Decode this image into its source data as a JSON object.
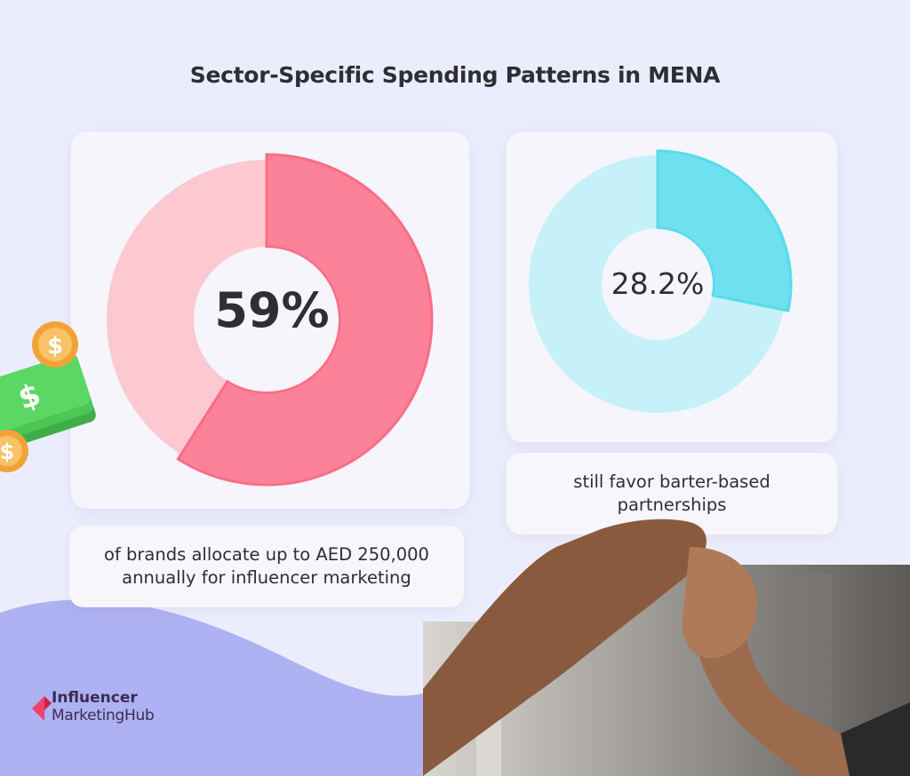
{
  "title": "Sector-Specific Spending Patterns in MENA",
  "chart_data": [
    {
      "type": "pie",
      "style": "donut",
      "values": [
        59,
        41
      ],
      "center_label": "59%",
      "caption": "of brands allocate up to AED 250,000 annually for influencer marketing",
      "caption_lines": [
        "of brands allocate up to AED 250,000",
        "annually for influencer marketing"
      ],
      "colors": {
        "highlight": "#fb6d86",
        "rest": "#fdc9d1"
      }
    },
    {
      "type": "pie",
      "style": "donut",
      "values": [
        28.2,
        71.8
      ],
      "center_label": "28.2%",
      "caption": "still favor barter-based partnerships",
      "caption_lines": [
        "still favor barter-based",
        "partnerships"
      ],
      "colors": {
        "highlight": "#57dcec",
        "rest": "#c6f1f8"
      }
    }
  ],
  "logo": {
    "line1": "Influencer",
    "line2": "MarketingHub",
    "accent": "#f0436a"
  },
  "colors": {
    "background": "#ecedfc",
    "wave": "#a9acf0",
    "text": "#2e2e36"
  }
}
